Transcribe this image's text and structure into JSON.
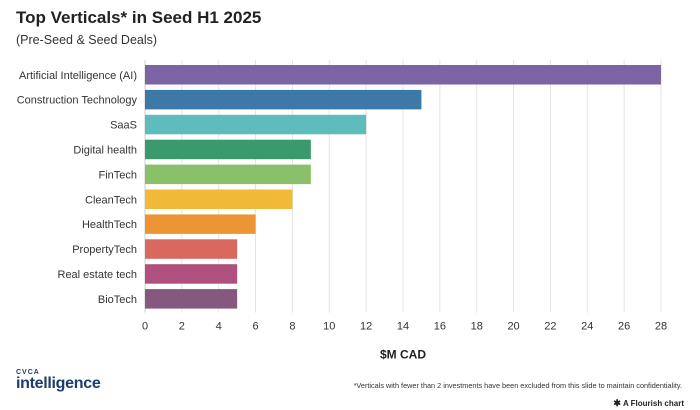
{
  "chart_data": {
    "type": "bar",
    "orientation": "horizontal",
    "title": "Top Verticals* in Seed H1 2025",
    "subtitle": "(Pre-Seed & Seed Deals)",
    "xlabel": "$M CAD",
    "ylabel": "",
    "xlim": [
      0,
      28
    ],
    "xticks": [
      0,
      2,
      4,
      6,
      8,
      10,
      12,
      14,
      16,
      18,
      20,
      22,
      24,
      26,
      28
    ],
    "grid": true,
    "categories": [
      "Artificial Intelligence (AI)",
      "Construction Technology",
      "SaaS",
      "Digital health",
      "FinTech",
      "CleanTech",
      "HealthTech",
      "PropertyTech",
      "Real estate tech",
      "BioTech"
    ],
    "values": [
      28,
      15,
      12,
      9,
      9,
      8,
      6,
      5,
      5,
      5
    ],
    "colors": [
      "#7b64a3",
      "#3d79a6",
      "#5fbcbc",
      "#3a9a6e",
      "#8bc06a",
      "#f0b93a",
      "#ec9534",
      "#d9695e",
      "#b0507e",
      "#84587f"
    ]
  },
  "branding": {
    "logo_small": "CVCA",
    "logo_big": "intelligence",
    "footnote": "*Verticals with fewer than 2 investments have been excluded from this slide to maintain confidentiality.",
    "credit": "A Flourish chart"
  }
}
